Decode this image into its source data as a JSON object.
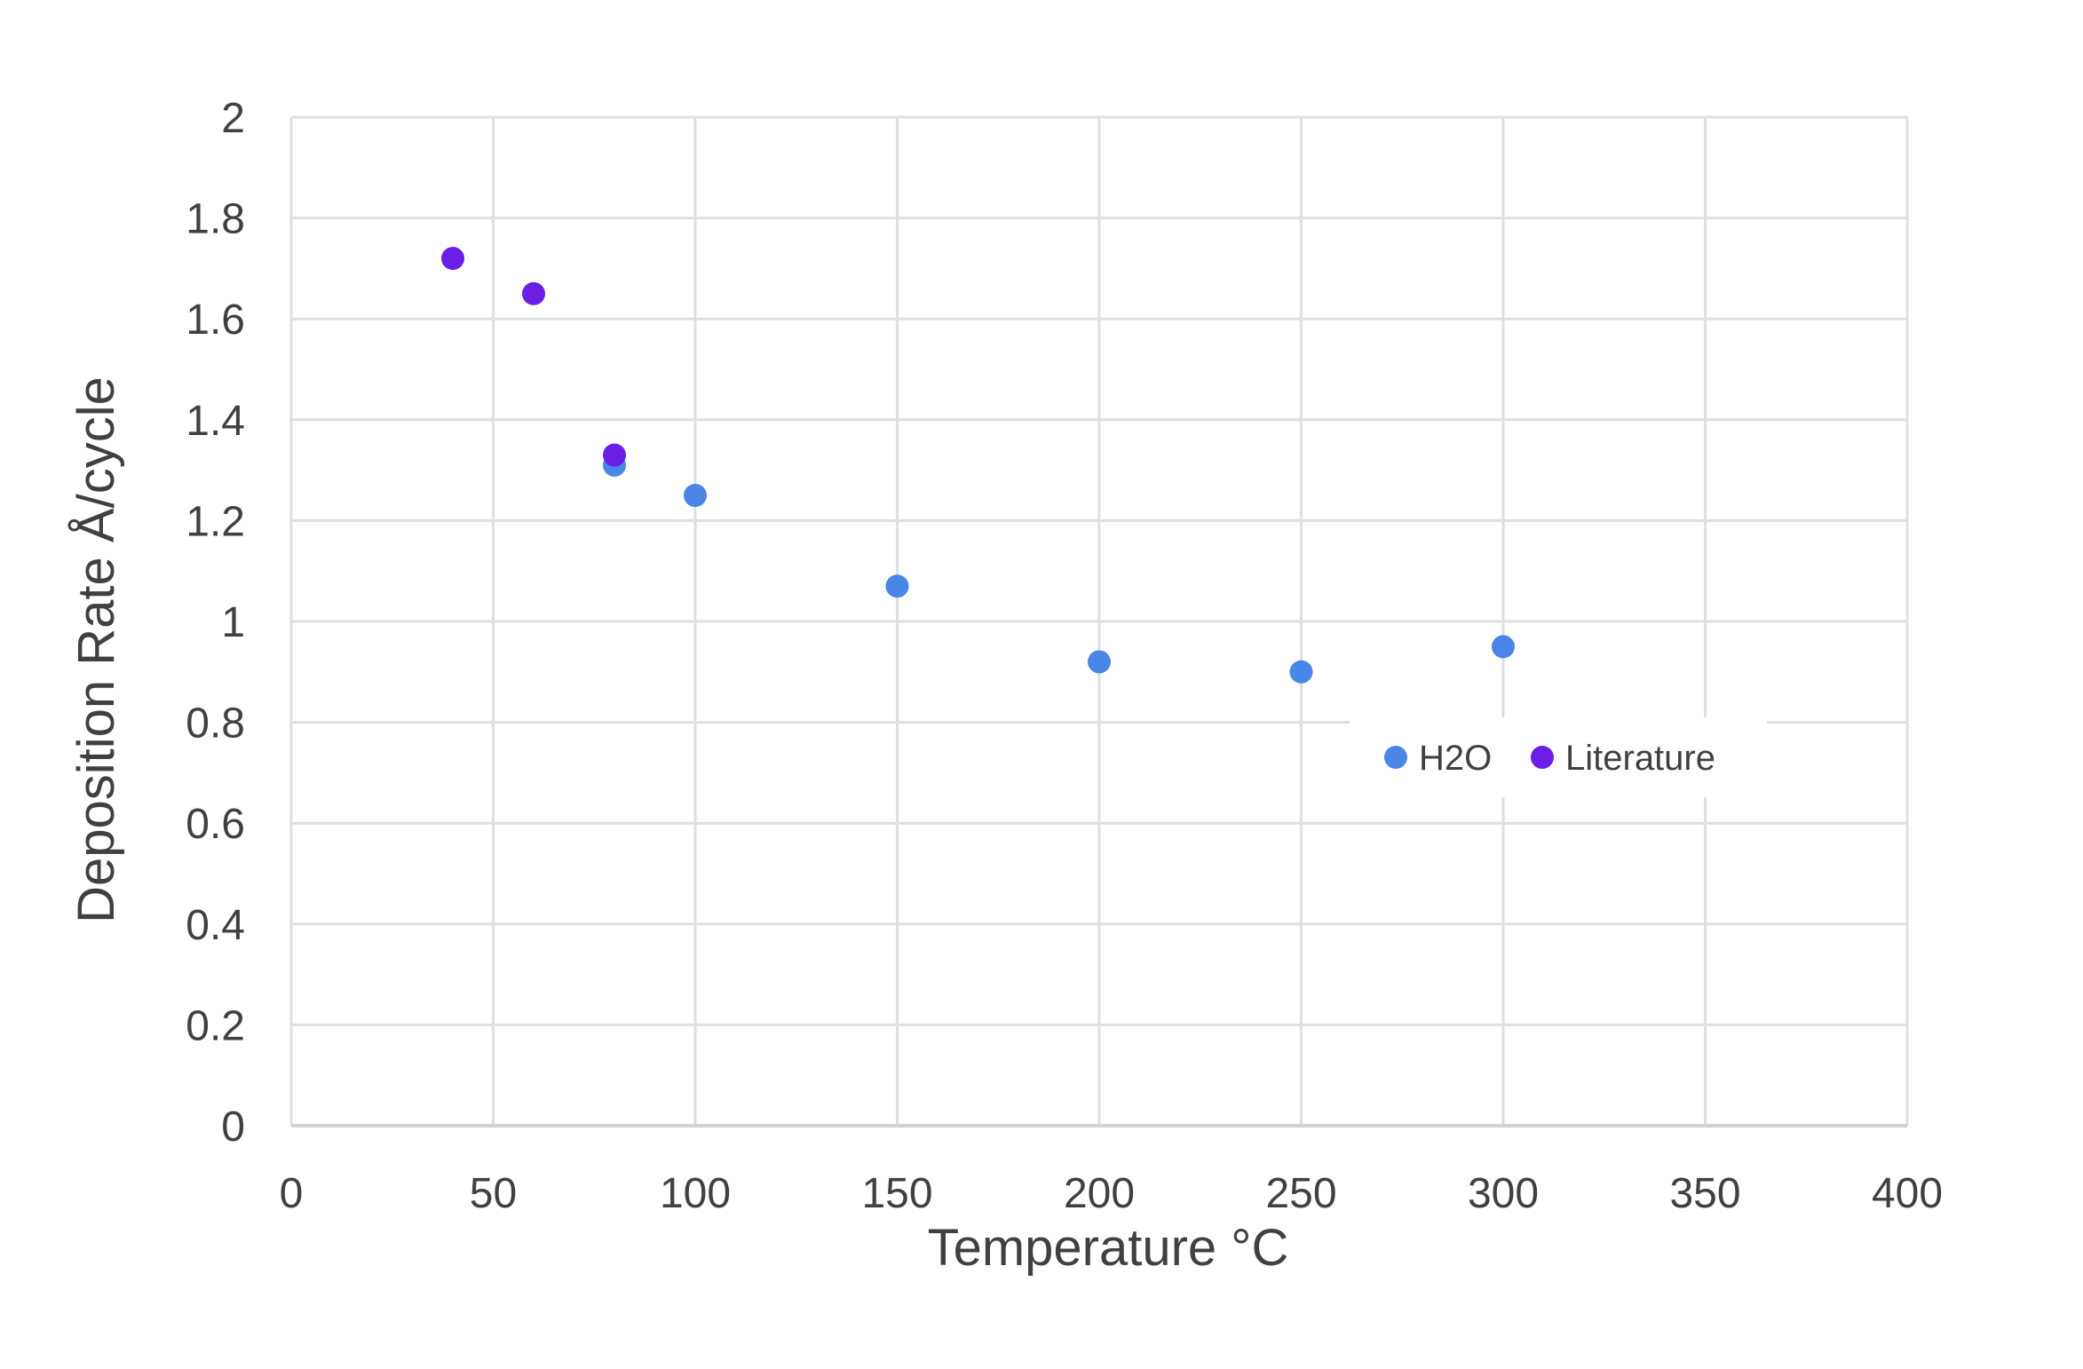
{
  "chart_data": {
    "type": "scatter",
    "title": "",
    "xlabel": "Temperature °C",
    "ylabel": "Deposition Rate Å/cycle",
    "xlim": [
      0,
      400
    ],
    "ylim": [
      0,
      2
    ],
    "x_ticks": [
      "0",
      "50",
      "100",
      "150",
      "200",
      "250",
      "300",
      "350",
      "400"
    ],
    "y_ticks": [
      "0",
      "0.2",
      "0.4",
      "0.6",
      "0.8",
      "1",
      "1.2",
      "1.4",
      "1.6",
      "1.8",
      "2"
    ],
    "grid": true,
    "legend_position": "right, below the plotted points",
    "series": [
      {
        "name": "H2O",
        "color": "#4a86e8",
        "points": [
          {
            "x": 80,
            "y": 1.31
          },
          {
            "x": 100,
            "y": 1.25
          },
          {
            "x": 150,
            "y": 1.07
          },
          {
            "x": 200,
            "y": 0.92
          },
          {
            "x": 250,
            "y": 0.9
          },
          {
            "x": 300,
            "y": 0.95
          }
        ]
      },
      {
        "name": "Literature",
        "color": "#6a1ee6",
        "points": [
          {
            "x": 40,
            "y": 1.72
          },
          {
            "x": 60,
            "y": 1.65
          },
          {
            "x": 80,
            "y": 1.33
          }
        ]
      }
    ]
  }
}
